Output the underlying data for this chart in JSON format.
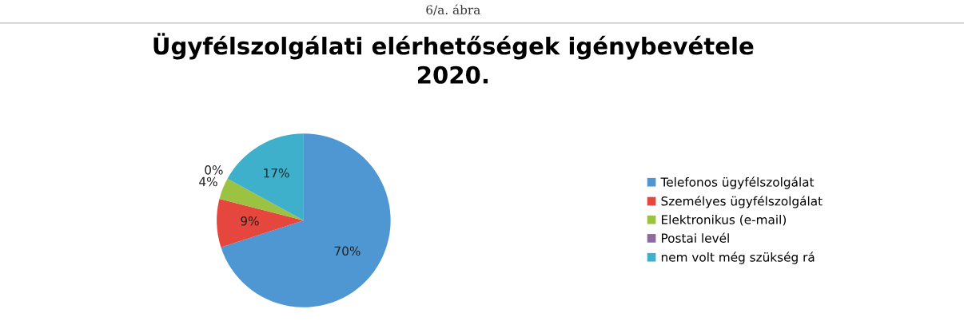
{
  "chart_data": {
    "type": "pie",
    "title": "Ügyfélszolgálati elérhetőségek igénybevétele\n2020.",
    "annotations": [
      "6/a. ábra"
    ],
    "categories": [
      "Telefonos ügyfélszolgálat",
      "Személyes ügyfélszolgálat",
      "Elektronikus (e-mail)",
      "Postai levél",
      "nem volt még szükség rá"
    ],
    "values": [
      70,
      9,
      4,
      0,
      17
    ],
    "value_labels": [
      "70%",
      "9%",
      "4%",
      "0%",
      "17%"
    ],
    "colors": [
      "#4f97d2",
      "#e5473f",
      "#9bc341",
      "#8d6aa0",
      "#3fb0cb"
    ],
    "legend": "right"
  }
}
